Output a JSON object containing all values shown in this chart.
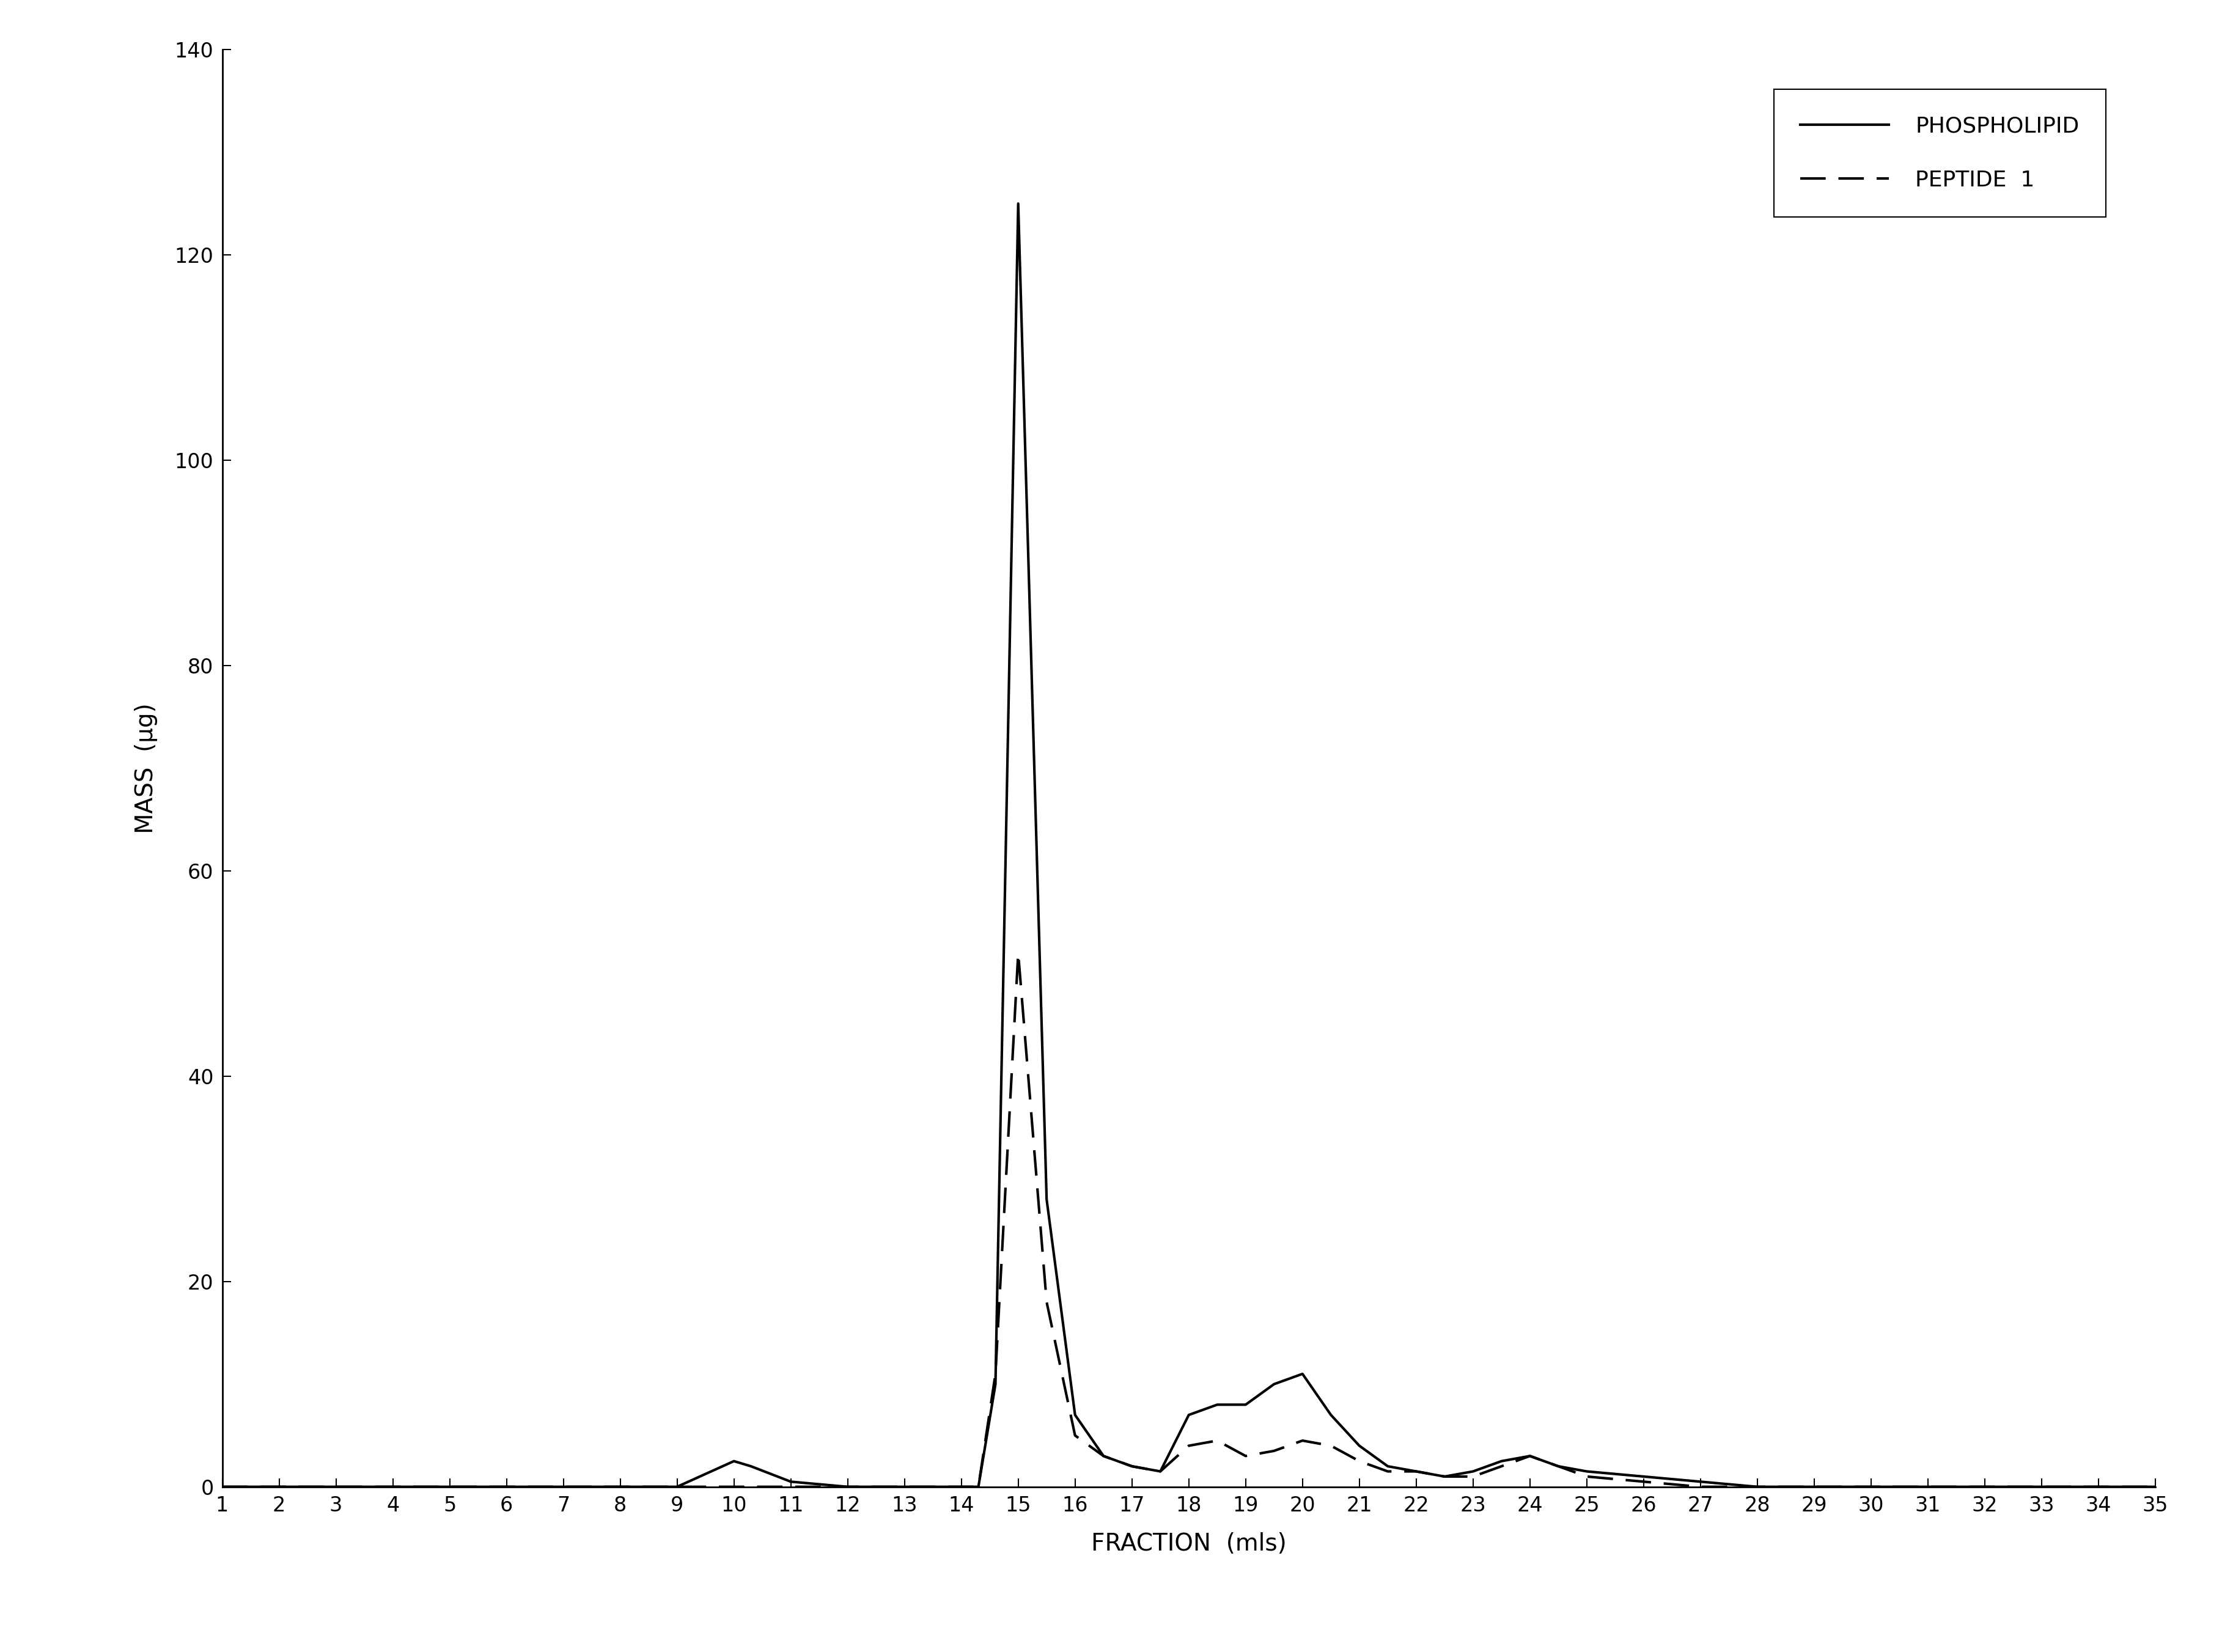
{
  "phospholipid_x": [
    1,
    2,
    3,
    4,
    5,
    6,
    7,
    8,
    9,
    10,
    10.3,
    11,
    12,
    13,
    13.5,
    14,
    14.3,
    14.6,
    15,
    15.5,
    16,
    16.5,
    17,
    17.5,
    18,
    18.5,
    19,
    19.5,
    20,
    20.5,
    21,
    21.5,
    22,
    22.5,
    23,
    23.5,
    24,
    24.5,
    25,
    26,
    27,
    28,
    29,
    30,
    31,
    32,
    33,
    34,
    35
  ],
  "phospholipid_y": [
    0,
    0,
    0,
    0,
    0,
    0,
    0,
    0,
    0,
    2.5,
    2.0,
    0.5,
    0,
    0,
    0,
    0,
    0,
    10,
    125,
    28,
    7,
    3,
    2,
    1.5,
    7,
    8,
    8,
    10,
    11,
    7,
    4,
    2,
    1.5,
    1,
    1.5,
    2.5,
    3,
    2,
    1.5,
    1,
    0.5,
    0,
    0,
    0,
    0,
    0,
    0,
    0,
    0
  ],
  "peptide_x": [
    1,
    2,
    3,
    4,
    5,
    6,
    7,
    8,
    9,
    10,
    11,
    12,
    13,
    13.5,
    14,
    14.3,
    14.6,
    15,
    15.5,
    16,
    16.5,
    17,
    17.5,
    18,
    18.5,
    19,
    19.5,
    20,
    20.5,
    21,
    21.5,
    22,
    22.5,
    23,
    23.5,
    24,
    24.5,
    25,
    26,
    27,
    28,
    29,
    30,
    31,
    32,
    33,
    34,
    35
  ],
  "peptide_y": [
    0,
    0,
    0,
    0,
    0,
    0,
    0,
    0,
    0,
    0,
    0,
    0,
    0,
    0,
    0,
    0,
    11,
    52,
    18,
    5,
    3,
    2,
    1.5,
    4,
    4.5,
    3,
    3.5,
    4.5,
    4,
    2.5,
    1.5,
    1.5,
    1,
    1,
    2,
    3,
    2,
    1,
    0.5,
    0,
    0,
    0,
    0,
    0,
    0,
    0,
    0,
    0
  ],
  "xlabel": "FRACTION  (mls)",
  "ylabel": "MASS  (μg)",
  "xlim": [
    1,
    35
  ],
  "ylim": [
    0,
    140
  ],
  "yticks": [
    0,
    20,
    40,
    60,
    80,
    100,
    120,
    140
  ],
  "xticks": [
    1,
    2,
    3,
    4,
    5,
    6,
    7,
    8,
    9,
    10,
    11,
    12,
    13,
    14,
    15,
    16,
    17,
    18,
    19,
    20,
    21,
    22,
    23,
    24,
    25,
    26,
    27,
    28,
    29,
    30,
    31,
    32,
    33,
    34,
    35
  ],
  "legend_phospholipid": "PHOSPHOLIPID",
  "legend_peptide": "PEPTIDE  1",
  "background_color": "#ffffff",
  "line_color": "#000000",
  "axis_label_fontsize": 28,
  "tick_fontsize": 24,
  "legend_fontsize": 26,
  "line_width": 3.0
}
